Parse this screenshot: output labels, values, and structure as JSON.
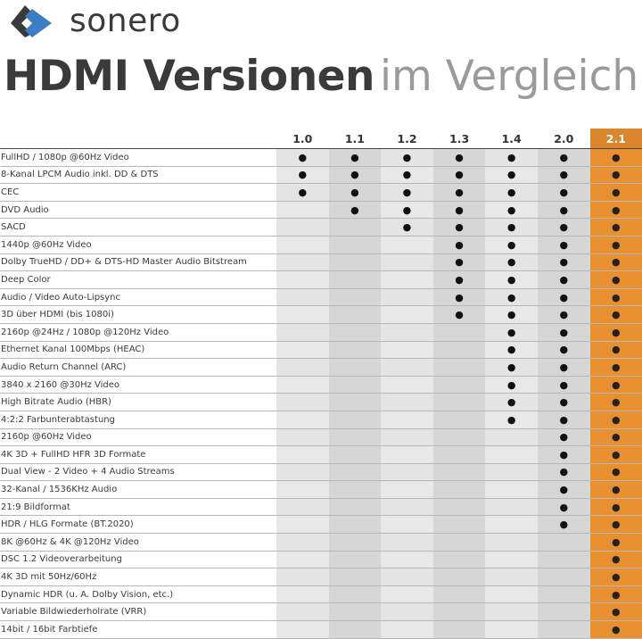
{
  "brand": {
    "name": "sonero"
  },
  "title": {
    "bold": "HDMI Versionen",
    "light": "im Vergleich"
  },
  "colors": {
    "highlight": "#d9862c",
    "logo_blue": "#3a7fc4",
    "logo_dark": "#3a3a3a"
  },
  "table": {
    "versions": [
      "1.0",
      "1.1",
      "1.2",
      "1.3",
      "1.4",
      "2.0",
      "2.1"
    ],
    "highlight_version": "2.1",
    "mark": "●",
    "rows": [
      {
        "feature": "FullHD / 1080p @60Hz Video",
        "since": 0
      },
      {
        "feature": "8-Kanal LPCM Audio inkl. DD & DTS",
        "since": 0
      },
      {
        "feature": "CEC",
        "since": 0
      },
      {
        "feature": "DVD Audio",
        "since": 1
      },
      {
        "feature": "SACD",
        "since": 2
      },
      {
        "feature": "1440p @60Hz Video",
        "since": 3
      },
      {
        "feature": "Dolby TrueHD / DD+ & DTS-HD Master Audio Bitstream",
        "since": 3
      },
      {
        "feature": "Deep Color",
        "since": 3
      },
      {
        "feature": "Audio / Video Auto-Lipsync",
        "since": 3
      },
      {
        "feature": "3D über HDMI (bis 1080i)",
        "since": 3
      },
      {
        "feature": "2160p @24Hz / 1080p @120Hz Video",
        "since": 4
      },
      {
        "feature": "Ethernet Kanal 100Mbps (HEAC)",
        "since": 4
      },
      {
        "feature": "Audio Return Channel (ARC)",
        "since": 4
      },
      {
        "feature": "3840 x 2160 @30Hz Video",
        "since": 4
      },
      {
        "feature": "High Bitrate Audio (HBR)",
        "since": 4
      },
      {
        "feature": "4:2:2 Farbunterabtastung",
        "since": 4
      },
      {
        "feature": "2160p @60Hz Video",
        "since": 5
      },
      {
        "feature": "4K 3D + FullHD HFR 3D Formate",
        "since": 5
      },
      {
        "feature": "Dual View - 2 Video + 4 Audio Streams",
        "since": 5
      },
      {
        "feature": "32-Kanal / 1536KHz Audio",
        "since": 5
      },
      {
        "feature": "21:9 Bildformat",
        "since": 5
      },
      {
        "feature": "HDR / HLG Formate (BT.2020)",
        "since": 5
      },
      {
        "feature": "8K @60Hz & 4K @120Hz Video",
        "since": 6
      },
      {
        "feature": "DSC 1.2 Videoverarbeitung",
        "since": 6
      },
      {
        "feature": "4K 3D mit 50Hz/60Hz",
        "since": 6
      },
      {
        "feature": "Dynamic HDR (u. A. Dolby Vision, etc.)",
        "since": 6
      },
      {
        "feature": "Variable Bildwiederholrate (VRR)",
        "since": 6
      },
      {
        "feature": "14bit / 16bit Farbtiefe",
        "since": 6
      }
    ]
  }
}
